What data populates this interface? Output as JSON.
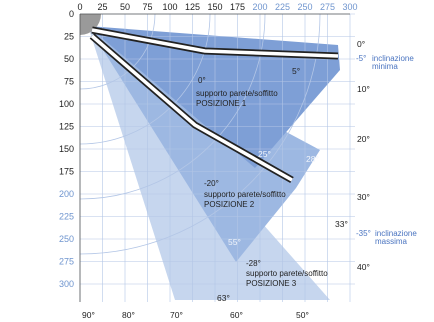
{
  "colors": {
    "fan_light": "#c6d6ee",
    "fan_mid": "#9db8e2",
    "fan_dark": "#7e9fd6",
    "grid": "#b3c6e6",
    "arm_outline": "#222222",
    "arm_fill": "#ffffff",
    "axis_blue": "#6f95cf",
    "mount": "#9a9a9a"
  },
  "axes": {
    "top_ticks": [
      "0",
      "25",
      "50",
      "75",
      "100",
      "125",
      "150",
      "175",
      "200",
      "225",
      "250",
      "275",
      "300"
    ],
    "top_ticks_blue_from": "200",
    "left_ticks": [
      "0",
      "25",
      "50",
      "75",
      "100",
      "125",
      "150",
      "175",
      "200",
      "225",
      "250",
      "275",
      "300"
    ],
    "left_ticks_blue_from": "200",
    "bottom_angles": [
      "90°",
      "80°",
      "70°",
      "60°",
      "50°"
    ],
    "right_angles": [
      "0°",
      "10°",
      "20°",
      "30°",
      "40°"
    ]
  },
  "annotations": {
    "min_tilt": {
      "angle": "-5°",
      "text1": "inclinazione",
      "text2": "minima"
    },
    "max_tilt": {
      "angle": "-35°",
      "text1": "inclinazione",
      "text2": "massima"
    },
    "extra_angles": [
      "5°",
      "25°",
      "28°",
      "33°",
      "55°",
      "63°"
    ]
  },
  "positions": [
    {
      "angle": "0°",
      "line1": "supporto parete/soffitto",
      "line2": "POSIZIONE 1"
    },
    {
      "angle": "-20°",
      "line1": "supporto parete/soffitto",
      "line2": "POSIZIONE 2"
    },
    {
      "angle": "-28°",
      "line1": "supporto parete/soffitto",
      "line2": "POSIZIONE 3"
    }
  ]
}
